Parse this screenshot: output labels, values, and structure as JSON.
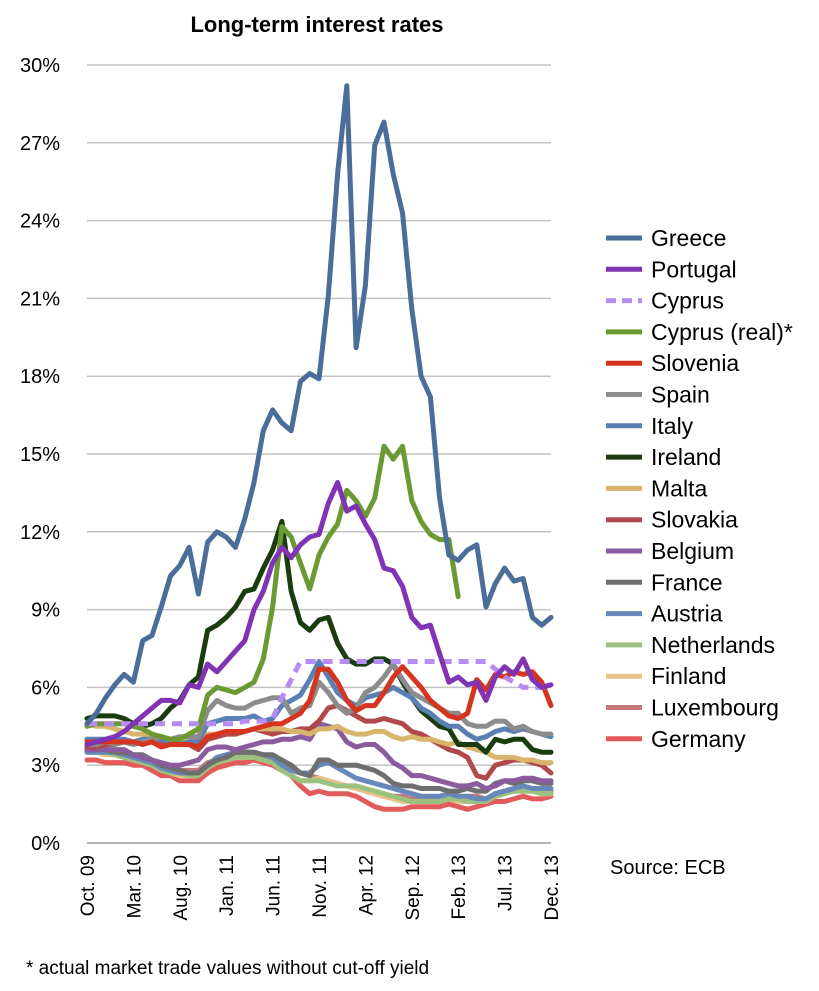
{
  "chart_data": {
    "type": "line",
    "title": "Long-term interest rates",
    "ylim": [
      0,
      30
    ],
    "y_ticks": [
      "0%",
      "3%",
      "6%",
      "9%",
      "12%",
      "15%",
      "18%",
      "21%",
      "24%",
      "27%",
      "30%"
    ],
    "x_ticks": [
      "Oct. 09",
      "Mar. 10",
      "Aug. 10",
      "Jan. 11",
      "Jun. 11",
      "Nov. 11",
      "Apr. 12",
      "Sep. 12",
      "Feb. 13",
      "Jul. 13",
      "Dec. 13"
    ],
    "grid": true,
    "legend_position": "right",
    "source": "Source: ECB",
    "footnote": "* actual market trade values without cut-off yield",
    "series": [
      {
        "name": "Greece",
        "color": "#4a6d9a",
        "dash": false,
        "values": [
          4.6,
          5.0,
          5.6,
          6.1,
          6.5,
          6.2,
          7.8,
          8.0,
          9.1,
          10.3,
          10.7,
          11.4,
          9.6,
          11.6,
          12.0,
          11.8,
          11.4,
          12.5,
          13.9,
          15.9,
          16.7,
          16.2,
          15.9,
          17.8,
          18.1,
          17.9,
          21.1,
          25.8,
          29.2,
          19.1,
          21.5,
          26.9,
          27.8,
          25.8,
          24.3,
          20.6,
          18.0,
          17.2,
          13.3,
          11.1,
          10.9,
          11.3,
          11.5,
          9.1,
          10.0,
          10.6,
          10.1,
          10.2,
          8.7,
          8.4,
          8.7
        ]
      },
      {
        "name": "Portugal",
        "color": "#8033b3",
        "dash": false,
        "values": [
          3.8,
          3.9,
          4.0,
          4.1,
          4.3,
          4.6,
          4.9,
          5.2,
          5.5,
          5.5,
          5.4,
          6.1,
          6.0,
          6.9,
          6.6,
          7.0,
          7.4,
          7.8,
          9.0,
          9.7,
          10.8,
          11.4,
          11.0,
          11.5,
          11.8,
          11.9,
          13.1,
          13.9,
          12.8,
          13.0,
          12.3,
          11.7,
          10.6,
          10.5,
          9.9,
          8.7,
          8.3,
          8.4,
          7.3,
          6.2,
          6.4,
          6.1,
          6.2,
          5.5,
          6.4,
          6.8,
          6.5,
          7.1,
          6.3,
          6.0,
          6.1
        ]
      },
      {
        "name": "Cyprus",
        "color": "#b58cf2",
        "dash": true,
        "values": [
          4.6,
          4.6,
          4.6,
          4.6,
          4.6,
          4.6,
          4.6,
          4.6,
          4.6,
          4.6,
          4.6,
          4.6,
          4.6,
          4.6,
          4.6,
          4.6,
          4.6,
          4.7,
          4.7,
          4.7,
          4.8,
          5.6,
          6.3,
          7.0,
          7.0,
          7.0,
          7.0,
          7.0,
          7.0,
          7.0,
          7.0,
          7.0,
          7.0,
          7.0,
          7.0,
          7.0,
          7.0,
          7.0,
          7.0,
          7.0,
          7.0,
          7.0,
          7.0,
          7.0,
          6.7,
          6.4,
          6.2,
          6.0,
          6.0,
          6.0,
          6.0
        ]
      },
      {
        "name": "Cyprus (real)*",
        "color": "#6c9a32",
        "dash": false,
        "values": [
          4.5,
          4.6,
          4.6,
          4.6,
          4.6,
          4.5,
          4.4,
          4.2,
          4.1,
          4.0,
          4.0,
          4.2,
          4.4,
          5.7,
          6.0,
          5.9,
          5.8,
          6.0,
          6.2,
          7.1,
          9.1,
          12.2,
          11.8,
          10.8,
          9.8,
          11.1,
          11.8,
          12.3,
          13.6,
          13.2,
          12.6,
          13.3,
          15.3,
          14.8,
          15.3,
          13.2,
          12.4,
          11.9,
          11.7,
          11.7,
          9.5
        ]
      },
      {
        "name": "Slovenia",
        "color": "#d6341e",
        "dash": false,
        "values": [
          3.9,
          3.9,
          3.9,
          3.9,
          3.9,
          3.9,
          3.8,
          3.9,
          3.7,
          3.8,
          3.8,
          3.8,
          3.7,
          4.1,
          4.2,
          4.3,
          4.3,
          4.3,
          4.4,
          4.5,
          4.6,
          4.6,
          4.8,
          5.0,
          5.5,
          6.7,
          6.7,
          6.2,
          5.5,
          5.1,
          5.3,
          5.3,
          5.8,
          6.4,
          6.8,
          6.4,
          6.0,
          5.5,
          5.2,
          4.9,
          4.8,
          5.0,
          6.3,
          5.9,
          6.5,
          6.4,
          6.6,
          6.5,
          6.6,
          6.2,
          5.3
        ]
      },
      {
        "name": "Spain",
        "color": "#8c8c8c",
        "dash": false,
        "values": [
          3.8,
          3.8,
          3.9,
          3.8,
          3.9,
          3.8,
          3.9,
          4.0,
          4.1,
          4.0,
          4.1,
          4.1,
          4.1,
          5.1,
          5.5,
          5.3,
          5.2,
          5.2,
          5.4,
          5.5,
          5.6,
          5.6,
          5.0,
          5.2,
          5.3,
          6.2,
          5.8,
          5.3,
          5.0,
          5.2,
          5.8,
          6.0,
          6.4,
          6.9,
          6.3,
          5.8,
          5.6,
          5.4,
          5.2,
          5.0,
          5.0,
          4.6,
          4.5,
          4.5,
          4.7,
          4.7,
          4.4,
          4.5,
          4.3,
          4.2,
          4.2
        ]
      },
      {
        "name": "Italy",
        "color": "#5a7fb5",
        "dash": false,
        "values": [
          4.0,
          4.0,
          4.0,
          4.0,
          4.0,
          3.9,
          4.0,
          4.0,
          4.0,
          3.9,
          3.8,
          3.9,
          3.9,
          4.6,
          4.7,
          4.8,
          4.8,
          4.8,
          4.9,
          4.7,
          4.8,
          5.3,
          5.5,
          5.7,
          6.3,
          7.0,
          6.4,
          5.8,
          5.5,
          5.3,
          5.6,
          5.7,
          5.8,
          6.0,
          5.8,
          5.6,
          5.2,
          5.0,
          4.7,
          4.5,
          4.5,
          4.2,
          4.0,
          4.1,
          4.3,
          4.4,
          4.3,
          4.4,
          4.3,
          4.2,
          4.1
        ]
      },
      {
        "name": "Ireland",
        "color": "#1a3d10",
        "dash": false,
        "values": [
          4.8,
          4.9,
          4.9,
          4.9,
          4.8,
          4.6,
          4.5,
          4.6,
          4.8,
          5.2,
          5.5,
          6.1,
          6.4,
          8.2,
          8.4,
          8.7,
          9.1,
          9.7,
          9.8,
          10.6,
          11.3,
          12.4,
          9.7,
          8.5,
          8.2,
          8.6,
          8.7,
          7.7,
          7.1,
          6.9,
          6.9,
          7.1,
          7.1,
          6.9,
          6.2,
          5.6,
          5.1,
          4.8,
          4.5,
          4.4,
          3.8,
          3.8,
          3.8,
          3.5,
          4.0,
          3.9,
          4.0,
          4.0,
          3.6,
          3.5,
          3.5
        ]
      },
      {
        "name": "Malta",
        "color": "#d9b56b",
        "dash": false,
        "values": [
          4.6,
          4.5,
          4.5,
          4.4,
          4.3,
          4.2,
          4.2,
          4.1,
          4.1,
          4.0,
          3.9,
          3.9,
          4.0,
          4.2,
          4.2,
          4.3,
          4.3,
          4.3,
          4.4,
          4.4,
          4.4,
          4.4,
          4.3,
          4.3,
          4.2,
          4.4,
          4.4,
          4.5,
          4.3,
          4.2,
          4.2,
          4.3,
          4.3,
          4.1,
          4.0,
          4.1,
          4.0,
          4.0,
          3.9,
          3.8,
          3.9,
          3.7,
          3.6,
          3.5,
          3.3,
          3.3,
          3.3,
          3.2,
          3.2,
          3.1,
          3.1
        ]
      },
      {
        "name": "Slovakia",
        "color": "#b04a4a",
        "dash": false,
        "values": [
          3.7,
          3.7,
          3.8,
          3.8,
          3.9,
          3.8,
          3.9,
          3.9,
          3.9,
          3.9,
          3.9,
          3.8,
          3.6,
          4.0,
          4.1,
          4.2,
          4.2,
          4.3,
          4.4,
          4.3,
          4.2,
          4.3,
          4.3,
          4.4,
          4.4,
          4.7,
          5.2,
          5.3,
          5.1,
          4.9,
          4.7,
          4.7,
          4.8,
          4.7,
          4.6,
          4.3,
          4.2,
          4.0,
          3.8,
          3.6,
          3.5,
          3.3,
          2.6,
          2.5,
          3.0,
          3.1,
          3.2,
          3.2,
          3.1,
          3.0,
          2.7
        ]
      },
      {
        "name": "Belgium",
        "color": "#8a5b9e",
        "dash": false,
        "values": [
          3.6,
          3.6,
          3.6,
          3.6,
          3.6,
          3.4,
          3.3,
          3.2,
          3.1,
          3.0,
          3.0,
          3.1,
          3.2,
          3.6,
          3.7,
          3.7,
          3.6,
          3.7,
          3.8,
          3.9,
          3.9,
          4.0,
          4.0,
          4.1,
          4.0,
          4.6,
          4.5,
          4.4,
          3.9,
          3.7,
          3.8,
          3.8,
          3.5,
          3.1,
          2.9,
          2.6,
          2.6,
          2.5,
          2.4,
          2.3,
          2.2,
          2.2,
          2.3,
          2.1,
          2.2,
          2.4,
          2.4,
          2.5,
          2.5,
          2.4,
          2.4
        ]
      },
      {
        "name": "France",
        "color": "#6e6e6e",
        "dash": false,
        "values": [
          3.6,
          3.6,
          3.6,
          3.5,
          3.5,
          3.4,
          3.4,
          3.2,
          3.0,
          2.9,
          2.8,
          2.7,
          2.7,
          3.0,
          3.2,
          3.3,
          3.5,
          3.5,
          3.5,
          3.4,
          3.4,
          3.2,
          3.0,
          2.7,
          2.6,
          3.2,
          3.2,
          3.0,
          3.0,
          3.0,
          2.9,
          2.8,
          2.6,
          2.3,
          2.2,
          2.2,
          2.1,
          2.1,
          2.1,
          2.0,
          2.0,
          2.1,
          2.0,
          2.0,
          2.3,
          2.4,
          2.3,
          2.4,
          2.4,
          2.3,
          2.3
        ]
      },
      {
        "name": "Austria",
        "color": "#6688bb",
        "dash": false,
        "values": [
          3.5,
          3.5,
          3.5,
          3.5,
          3.4,
          3.3,
          3.2,
          3.1,
          2.9,
          2.8,
          2.7,
          2.7,
          2.7,
          3.0,
          3.3,
          3.4,
          3.5,
          3.5,
          3.5,
          3.4,
          3.3,
          3.0,
          2.8,
          2.7,
          2.7,
          3.0,
          3.1,
          2.9,
          2.7,
          2.5,
          2.4,
          2.3,
          2.2,
          2.1,
          2.0,
          1.9,
          1.8,
          1.8,
          1.8,
          1.9,
          1.8,
          1.8,
          1.7,
          1.7,
          1.9,
          2.0,
          2.1,
          2.2,
          2.1,
          2.1,
          2.1
        ]
      },
      {
        "name": "Netherlands",
        "color": "#9cc17f",
        "dash": false,
        "values": [
          3.5,
          3.5,
          3.5,
          3.4,
          3.3,
          3.2,
          3.1,
          3.0,
          2.8,
          2.7,
          2.7,
          2.6,
          2.6,
          2.9,
          3.1,
          3.2,
          3.3,
          3.3,
          3.3,
          3.2,
          3.1,
          2.8,
          2.6,
          2.4,
          2.4,
          2.4,
          2.3,
          2.2,
          2.2,
          2.2,
          2.1,
          2.0,
          1.9,
          1.8,
          1.7,
          1.6,
          1.6,
          1.6,
          1.6,
          1.7,
          1.7,
          1.6,
          1.6,
          1.6,
          1.8,
          1.9,
          2.0,
          2.0,
          2.0,
          1.9,
          1.9
        ]
      },
      {
        "name": "Finland",
        "color": "#e8c386",
        "dash": false,
        "values": [
          3.5,
          3.5,
          3.4,
          3.4,
          3.3,
          3.2,
          3.1,
          3.0,
          2.8,
          2.7,
          2.6,
          2.6,
          2.6,
          2.9,
          3.1,
          3.2,
          3.3,
          3.3,
          3.3,
          3.2,
          3.1,
          2.8,
          2.6,
          2.4,
          2.4,
          2.5,
          2.4,
          2.3,
          2.2,
          2.1,
          2.0,
          1.9,
          1.8,
          1.7,
          1.6,
          1.6,
          1.6,
          1.6,
          1.6,
          1.7,
          1.6,
          1.6,
          1.6,
          1.6,
          1.8,
          1.9,
          2.0,
          2.0,
          2.0,
          1.9,
          1.9
        ]
      },
      {
        "name": "Luxembourg",
        "color": "#c77878",
        "dash": false,
        "values": [
          3.6,
          3.6,
          3.5,
          3.5,
          3.4,
          3.3,
          3.2,
          3.1,
          2.9,
          2.8,
          2.8,
          2.8,
          2.8,
          3.1,
          3.2,
          3.3,
          3.4,
          3.4,
          3.4,
          3.3,
          3.2,
          2.9,
          2.8,
          2.7,
          2.6,
          2.5,
          2.4,
          2.3,
          2.2,
          2.1,
          2.0,
          1.9,
          1.8,
          1.8,
          1.8,
          1.7,
          1.7,
          1.7,
          1.7,
          1.8,
          1.7,
          1.8,
          1.8,
          1.7,
          1.9,
          2.0,
          2.1,
          2.1,
          2.1,
          2.0,
          2.0
        ]
      },
      {
        "name": "Germany",
        "color": "#e35a5a",
        "dash": false,
        "values": [
          3.2,
          3.2,
          3.1,
          3.1,
          3.1,
          3.0,
          3.0,
          2.8,
          2.6,
          2.6,
          2.4,
          2.4,
          2.4,
          2.7,
          2.9,
          3.0,
          3.1,
          3.1,
          3.2,
          3.1,
          3.0,
          2.8,
          2.6,
          2.2,
          1.9,
          2.0,
          1.9,
          1.9,
          1.9,
          1.8,
          1.6,
          1.4,
          1.3,
          1.3,
          1.3,
          1.4,
          1.4,
          1.4,
          1.4,
          1.5,
          1.4,
          1.3,
          1.4,
          1.5,
          1.6,
          1.6,
          1.7,
          1.8,
          1.7,
          1.7,
          1.8
        ]
      }
    ]
  }
}
